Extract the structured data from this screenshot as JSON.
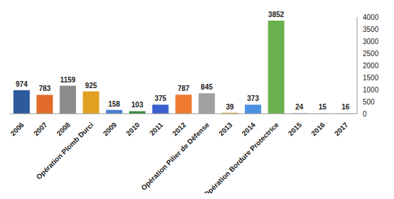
{
  "chart_data": {
    "type": "bar",
    "categories": [
      "2006",
      "2007",
      "2008",
      "Opération Plomb Durci",
      "2009",
      "2010",
      "2011",
      "2012",
      "Opération Pilier de Défense",
      "2013",
      "2014",
      "Opération Bordure Protectrice",
      "2015",
      "2016",
      "2017"
    ],
    "values": [
      974,
      783,
      1159,
      925,
      158,
      103,
      375,
      787,
      845,
      39,
      373,
      3852,
      24,
      15,
      16
    ],
    "colors": [
      "#2e5a9c",
      "#e06b2a",
      "#8c8c8c",
      "#e0a020",
      "#4a7fcf",
      "#3a8a3a",
      "#3a5fd0",
      "#f07a30",
      "#a0a0a0",
      "#d4a017",
      "#4a90e0",
      "#6ab04c",
      "#8fa8d8",
      "#f0b090",
      "#b0b0b0"
    ],
    "ylim": [
      0,
      4000
    ],
    "yticks": [
      0,
      500,
      1000,
      1500,
      2000,
      2500,
      3000,
      3500,
      4000
    ],
    "grid": false,
    "data_labels": true
  }
}
